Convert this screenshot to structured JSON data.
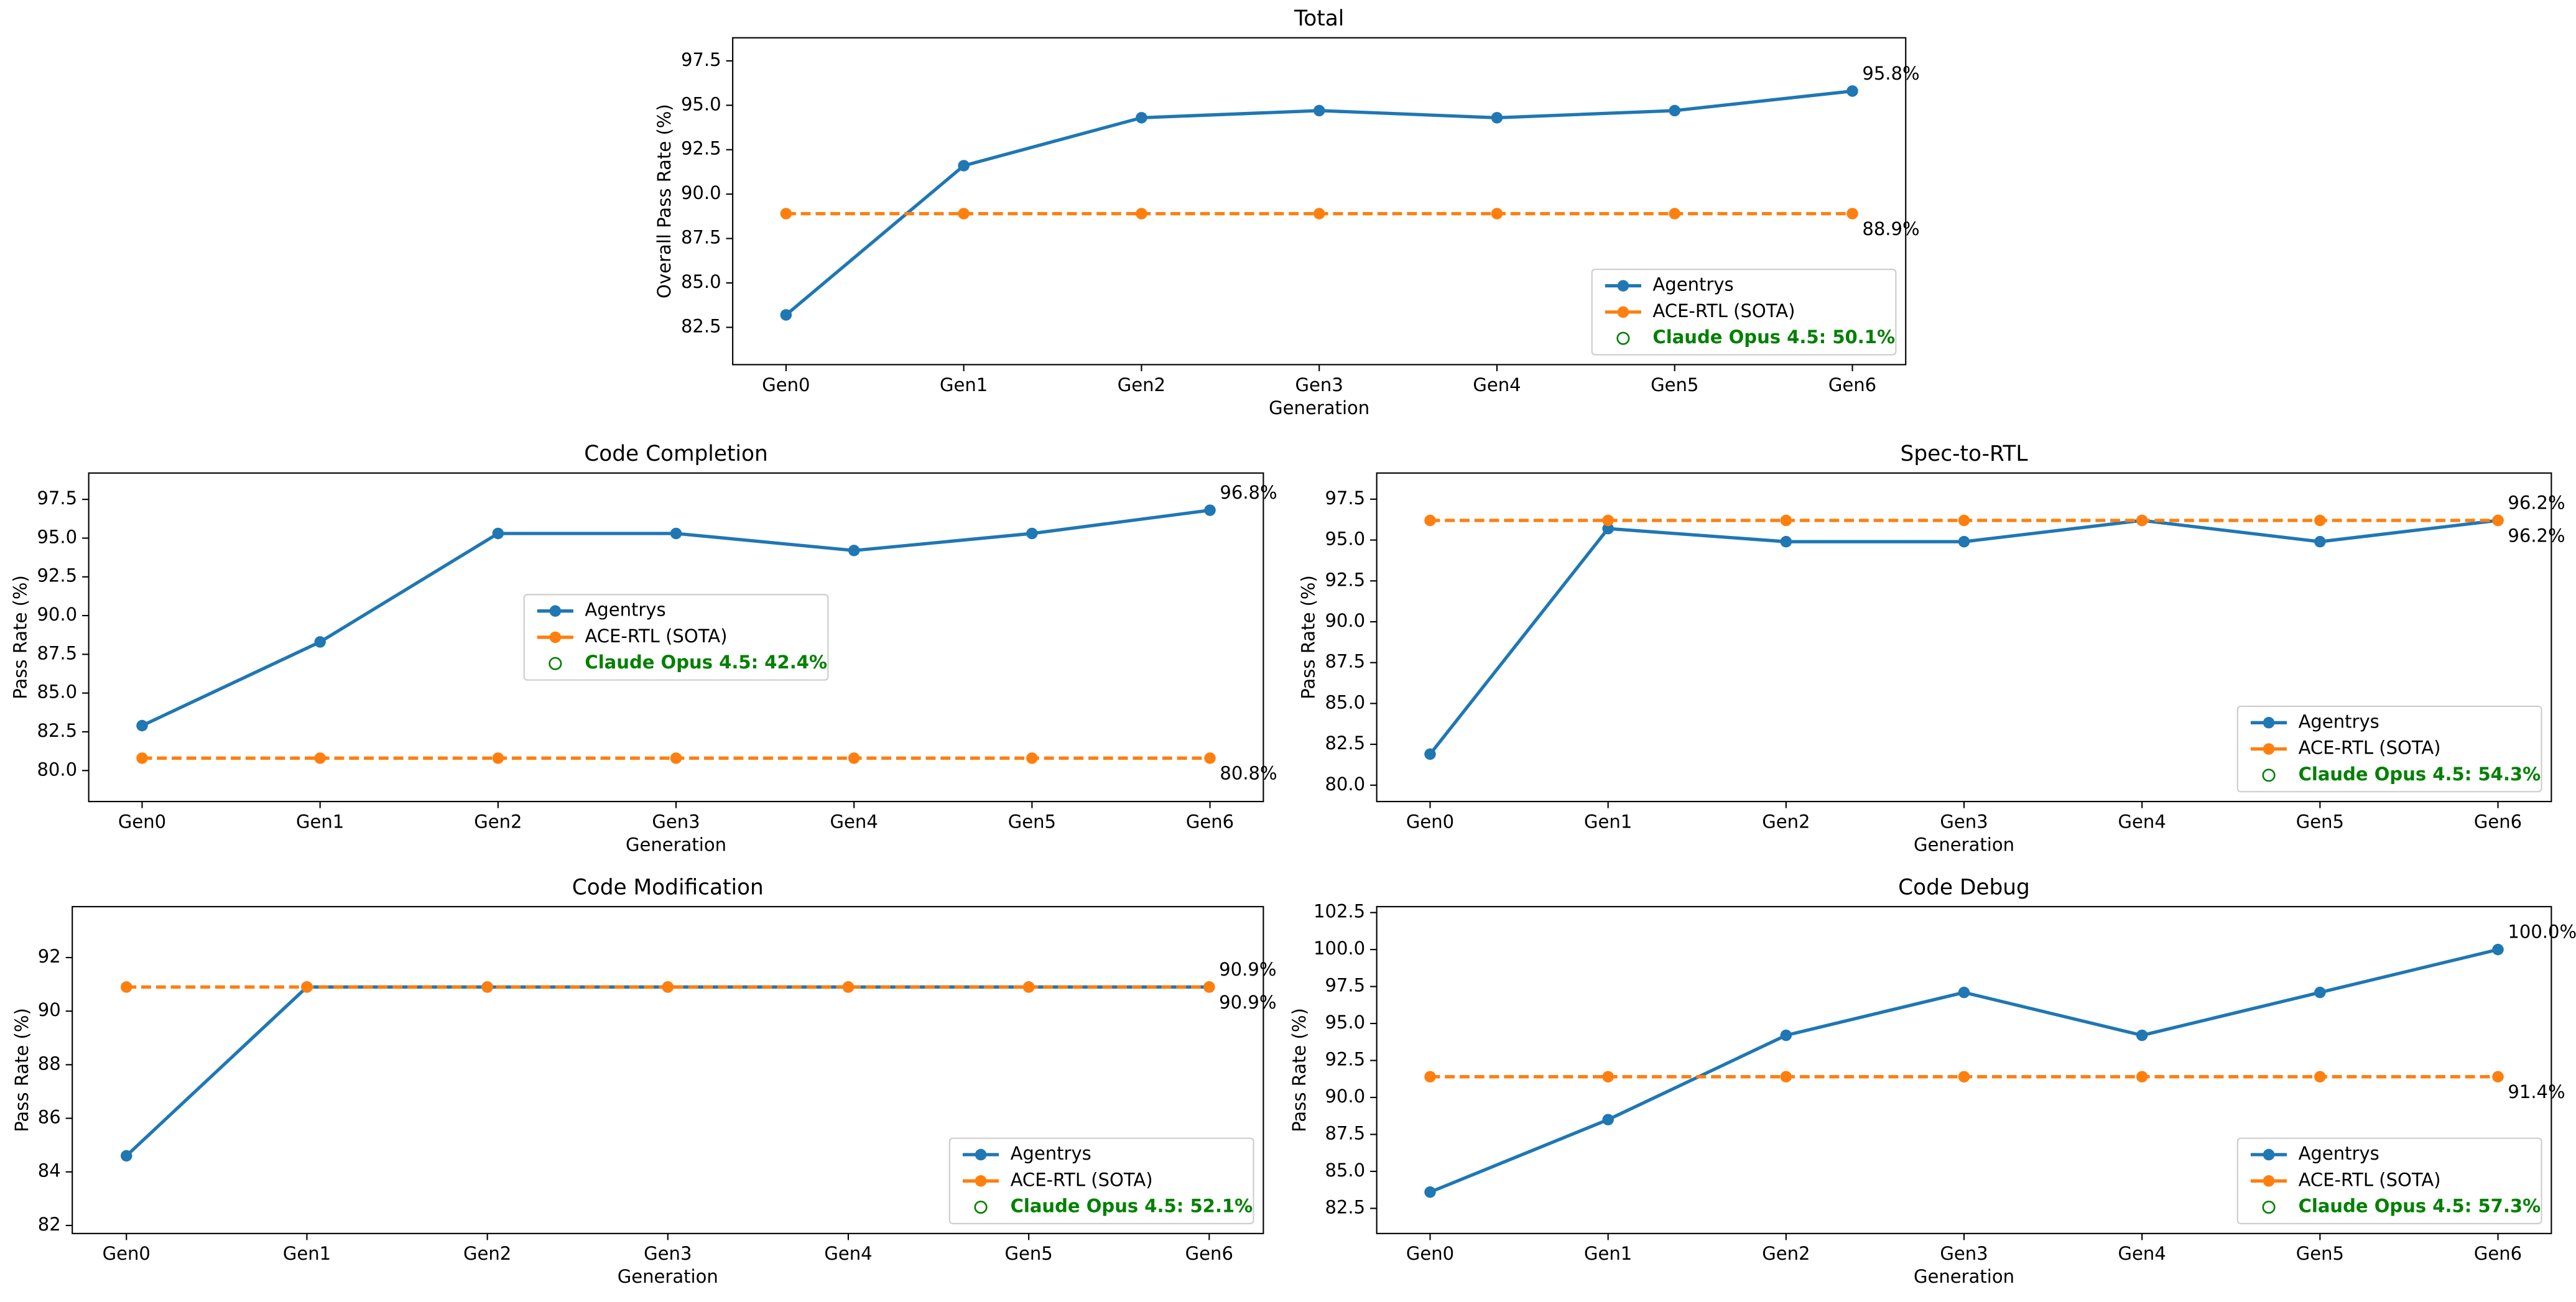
{
  "chart_data": [
    {
      "type": "line",
      "title": "Total",
      "xlabel": "Generation",
      "ylabel": "Overall Pass Rate (%)",
      "categories": [
        "Gen0",
        "Gen1",
        "Gen2",
        "Gen3",
        "Gen4",
        "Gen5",
        "Gen6"
      ],
      "series": [
        {
          "name": "Agentrys",
          "color": "#1f77b4",
          "linestyle": "solid",
          "values": [
            83.2,
            91.6,
            94.3,
            94.7,
            94.3,
            94.7,
            95.8
          ],
          "value_labels": [
            null,
            null,
            null,
            null,
            null,
            null,
            "95.8%"
          ]
        },
        {
          "name": "ACE-RTL (SOTA)",
          "color": "#ff7f0e",
          "linestyle": "dashed",
          "values": [
            88.9,
            88.9,
            88.9,
            88.9,
            88.9,
            88.9,
            88.9
          ],
          "value_labels": [
            null,
            null,
            null,
            null,
            null,
            null,
            "88.9%"
          ]
        }
      ],
      "reference": {
        "label": "Claude Opus 4.5: 50.1%",
        "color": "#008000"
      },
      "ylim": [
        80.4,
        98.8
      ],
      "yticks": [
        82.5,
        {
          "value": 85,
          "label": "85.0"
        },
        87.5,
        {
          "value": 90,
          "label": "90.0"
        },
        92.5,
        {
          "value": 95,
          "label": "95.0"
        },
        97.5
      ],
      "legend_loc": "lower right"
    },
    {
      "type": "line",
      "title": "Code Completion",
      "xlabel": "Generation",
      "ylabel": "Pass Rate (%)",
      "categories": [
        "Gen0",
        "Gen1",
        "Gen2",
        "Gen3",
        "Gen4",
        "Gen5",
        "Gen6"
      ],
      "series": [
        {
          "name": "Agentrys",
          "color": "#1f77b4",
          "linestyle": "solid",
          "values": [
            82.9,
            88.3,
            95.3,
            95.3,
            94.2,
            95.3,
            96.8
          ],
          "value_labels": [
            null,
            null,
            null,
            null,
            null,
            null,
            "96.8%"
          ]
        },
        {
          "name": "ACE-RTL (SOTA)",
          "color": "#ff7f0e",
          "linestyle": "dashed",
          "values": [
            80.8,
            80.8,
            80.8,
            80.8,
            80.8,
            80.8,
            80.8
          ],
          "value_labels": [
            null,
            null,
            null,
            null,
            null,
            null,
            "80.8%"
          ]
        }
      ],
      "reference": {
        "label": "Claude Opus 4.5: 42.4%",
        "color": "#008000"
      },
      "ylim": [
        78.0,
        99.2
      ],
      "yticks": [
        {
          "value": 80,
          "label": "80.0"
        },
        82.5,
        {
          "value": 85,
          "label": "85.0"
        },
        87.5,
        {
          "value": 90,
          "label": "90.0"
        },
        92.5,
        {
          "value": 95,
          "label": "95.0"
        },
        97.5
      ],
      "legend_loc": "center"
    },
    {
      "type": "line",
      "title": "Spec-to-RTL",
      "xlabel": "Generation",
      "ylabel": "Pass Rate (%)",
      "categories": [
        "Gen0",
        "Gen1",
        "Gen2",
        "Gen3",
        "Gen4",
        "Gen5",
        "Gen6"
      ],
      "series": [
        {
          "name": "Agentrys",
          "color": "#1f77b4",
          "linestyle": "solid",
          "values": [
            81.9,
            95.7,
            94.9,
            94.9,
            96.2,
            94.9,
            96.2
          ],
          "value_labels": [
            null,
            null,
            null,
            null,
            null,
            null,
            "96.2%"
          ]
        },
        {
          "name": "ACE-RTL (SOTA)",
          "color": "#ff7f0e",
          "linestyle": "dashed",
          "values": [
            96.2,
            96.2,
            96.2,
            96.2,
            96.2,
            96.2,
            96.2
          ],
          "value_labels": [
            null,
            null,
            null,
            null,
            null,
            null,
            "96.2%"
          ]
        }
      ],
      "reference": {
        "label": "Claude Opus 4.5: 54.3%",
        "color": "#008000"
      },
      "ylim": [
        79.0,
        99.1
      ],
      "yticks": [
        {
          "value": 80,
          "label": "80.0"
        },
        82.5,
        {
          "value": 85,
          "label": "85.0"
        },
        87.5,
        {
          "value": 90,
          "label": "90.0"
        },
        92.5,
        {
          "value": 95,
          "label": "95.0"
        },
        97.5
      ],
      "legend_loc": "lower right"
    },
    {
      "type": "line",
      "title": "Code Modification",
      "xlabel": "Generation",
      "ylabel": "Pass Rate (%)",
      "categories": [
        "Gen0",
        "Gen1",
        "Gen2",
        "Gen3",
        "Gen4",
        "Gen5",
        "Gen6"
      ],
      "series": [
        {
          "name": "Agentrys",
          "color": "#1f77b4",
          "linestyle": "solid",
          "values": [
            84.6,
            90.9,
            90.9,
            90.9,
            90.9,
            90.9,
            90.9
          ],
          "value_labels": [
            null,
            null,
            null,
            null,
            null,
            null,
            "90.9%"
          ]
        },
        {
          "name": "ACE-RTL (SOTA)",
          "color": "#ff7f0e",
          "linestyle": "dashed",
          "values": [
            90.9,
            90.9,
            90.9,
            90.9,
            90.9,
            90.9,
            90.9
          ],
          "value_labels": [
            null,
            null,
            null,
            null,
            null,
            null,
            "90.9%"
          ]
        }
      ],
      "reference": {
        "label": "Claude Opus 4.5: 52.1%",
        "color": "#008000"
      },
      "ylim": [
        81.7,
        93.9
      ],
      "yticks": [
        82,
        84,
        86,
        88,
        90,
        92
      ],
      "legend_loc": "lower right"
    },
    {
      "type": "line",
      "title": "Code Debug",
      "xlabel": "Generation",
      "ylabel": "Pass Rate (%)",
      "categories": [
        "Gen0",
        "Gen1",
        "Gen2",
        "Gen3",
        "Gen4",
        "Gen5",
        "Gen6"
      ],
      "series": [
        {
          "name": "Agentrys",
          "color": "#1f77b4",
          "linestyle": "solid",
          "values": [
            83.6,
            88.5,
            94.2,
            97.1,
            94.2,
            97.1,
            100.0
          ],
          "value_labels": [
            null,
            null,
            null,
            null,
            null,
            null,
            "100.0%"
          ]
        },
        {
          "name": "ACE-RTL (SOTA)",
          "color": "#ff7f0e",
          "linestyle": "dashed",
          "values": [
            91.4,
            91.4,
            91.4,
            91.4,
            91.4,
            91.4,
            91.4
          ],
          "value_labels": [
            null,
            null,
            null,
            null,
            null,
            null,
            "91.4%"
          ]
        }
      ],
      "reference": {
        "label": "Claude Opus 4.5: 57.3%",
        "color": "#008000"
      },
      "ylim": [
        80.8,
        102.9
      ],
      "yticks": [
        82.5,
        {
          "value": 85,
          "label": "85.0"
        },
        87.5,
        {
          "value": 90,
          "label": "90.0"
        },
        92.5,
        {
          "value": 95,
          "label": "95.0"
        },
        97.5,
        {
          "value": 100,
          "label": "100.0"
        },
        102.5
      ],
      "legend_loc": "lower right"
    }
  ]
}
